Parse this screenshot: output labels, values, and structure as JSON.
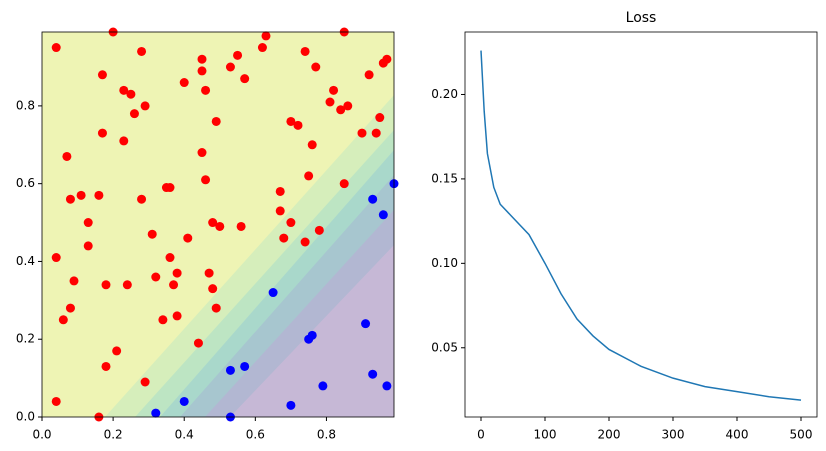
{
  "chart_data": [
    {
      "type": "scatter",
      "xlim": [
        0,
        0.99
      ],
      "ylim": [
        0,
        0.99
      ],
      "xticks": [
        {
          "value": 0,
          "label": "0.0"
        },
        0.2,
        0.4,
        0.6,
        0.8
      ],
      "yticks": [
        {
          "value": 0,
          "label": "0.0"
        },
        0.2,
        0.4,
        0.6,
        0.8
      ],
      "series": [
        {
          "color": "red",
          "x": [
            0.04,
            0.2,
            0.28,
            0.17,
            0.23,
            0.25,
            0.23,
            0.17,
            0.07,
            0.08,
            0.11,
            0.16,
            0.13,
            0.13,
            0.09,
            0.18,
            0.24,
            0.04,
            0.06,
            0.08,
            0.18,
            0.21,
            0.29,
            0.16,
            0.04,
            0.26,
            0.29,
            0.28,
            0.31,
            0.35,
            0.36,
            0.37,
            0.36,
            0.38,
            0.38,
            0.4,
            0.41,
            0.44,
            0.45,
            0.45,
            0.45,
            0.46,
            0.49,
            0.47,
            0.46,
            0.48,
            0.48,
            0.49,
            0.5,
            0.32,
            0.34,
            0.53,
            0.57,
            0.55,
            0.63,
            0.62,
            0.74,
            0.77,
            0.7,
            0.72,
            0.76,
            0.75,
            0.67,
            0.67,
            0.68,
            0.7,
            0.74,
            0.78,
            0.81,
            0.82,
            0.85,
            0.84,
            0.86,
            0.9,
            0.92,
            0.94,
            0.96,
            0.97,
            0.95,
            0.85,
            0.56
          ],
          "values": [
            0.95,
            0.99,
            0.94,
            0.88,
            0.84,
            0.83,
            0.71,
            0.73,
            0.67,
            0.56,
            0.57,
            0.57,
            0.5,
            0.44,
            0.35,
            0.34,
            0.34,
            0.41,
            0.25,
            0.28,
            0.13,
            0.17,
            0.09,
            0,
            0.04,
            0.78,
            0.8,
            0.56,
            0.47,
            0.59,
            0.59,
            0.34,
            0.41,
            0.37,
            0.26,
            0.86,
            0.46,
            0.19,
            0.68,
            0.89,
            0.92,
            0.84,
            0.76,
            0.37,
            0.61,
            0.5,
            0.33,
            0.28,
            0.49,
            0.36,
            0.25,
            0.9,
            0.87,
            0.93,
            0.98,
            0.95,
            0.94,
            0.9,
            0.76,
            0.75,
            0.7,
            0.62,
            0.58,
            0.53,
            0.46,
            0.5,
            0.45,
            0.48,
            0.81,
            0.84,
            0.99,
            0.79,
            0.8,
            0.73,
            0.88,
            0.73,
            0.91,
            0.92,
            0.77,
            0.6,
            0.49
          ]
        },
        {
          "color": "blue",
          "x": [
            0.99,
            0.93,
            0.96,
            0.65,
            0.91,
            0.76,
            0.75,
            0.79,
            0.7,
            0.57,
            0.53,
            0.53,
            0.4,
            0.32,
            0.93,
            0.97
          ],
          "values": [
            0.6,
            0.56,
            0.52,
            0.32,
            0.24,
            0.21,
            0.2,
            0.08,
            0.03,
            0.13,
            0.12,
            0,
            0.04,
            0.01,
            0.11,
            0.08
          ]
        }
      ]
    },
    {
      "type": "line",
      "title": "Loss",
      "xlim": [
        -25,
        525
      ],
      "ylim": [
        0.009,
        0.237
      ],
      "xticks": [
        0,
        100,
        200,
        300,
        400,
        500
      ],
      "yticks": [
        0.05,
        {
          "value": 0.1,
          "label": "0.10"
        },
        0.15,
        {
          "value": 0.2,
          "label": "0.20"
        }
      ],
      "x": [
        0,
        5,
        10,
        20,
        30,
        50,
        75,
        100,
        125,
        150,
        175,
        200,
        250,
        300,
        350,
        400,
        450,
        500
      ],
      "series": [
        {
          "color": "#1f77b4",
          "values": [
            0.226,
            0.19,
            0.165,
            0.145,
            0.135,
            0.127,
            0.117,
            0.1,
            0.082,
            0.067,
            0.057,
            0.049,
            0.039,
            0.032,
            0.027,
            0.024,
            0.021,
            0.019
          ]
        }
      ]
    }
  ]
}
